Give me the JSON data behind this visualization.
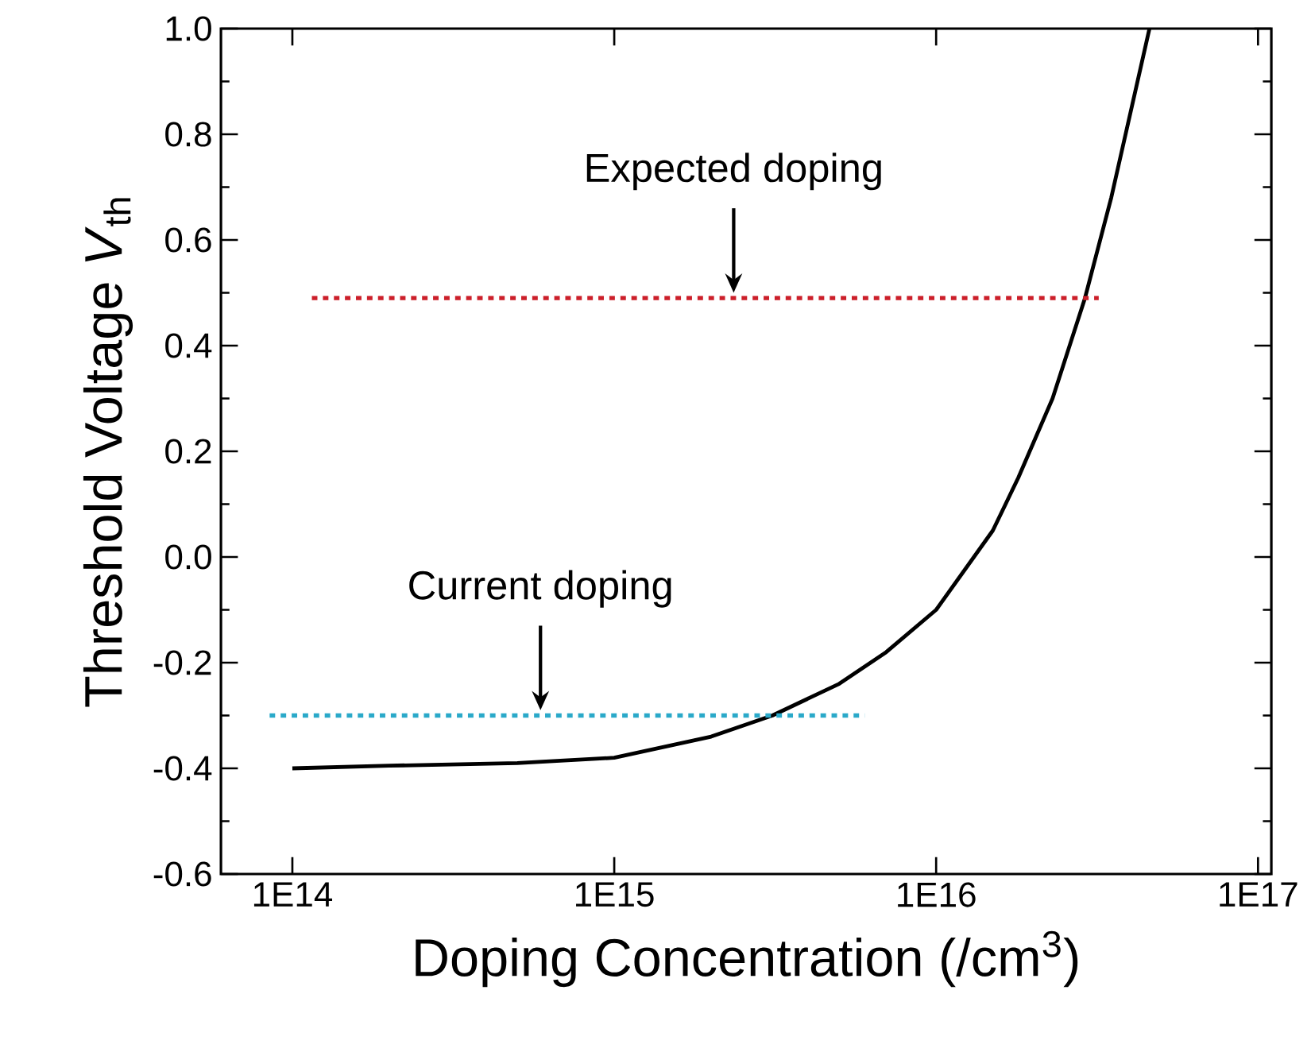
{
  "chart_data": {
    "type": "line",
    "xlabel": "Doping Concentration (/cm$^{3}$)",
    "ylabel": "Threshold Voltage *V*$_{th}$",
    "log": "x",
    "xlim": [
      60000000000000.0,
      1.1e+17
    ],
    "ylim": [
      -0.6,
      1.0
    ],
    "xticks": [
      {
        "value": 100000000000000.0,
        "label": "1E14"
      },
      {
        "value": 1000000000000000.0,
        "label": "1E15"
      },
      {
        "value": 1e+16,
        "label": "1E16"
      },
      {
        "value": 1e+17,
        "label": "1E17"
      }
    ],
    "yticks": [
      {
        "value": -0.6,
        "label": "-0.6"
      },
      {
        "value": -0.4,
        "label": "-0.4"
      },
      {
        "value": -0.2,
        "label": "-0.2"
      },
      {
        "value": 0.0,
        "label": "0.0"
      },
      {
        "value": 0.2,
        "label": "0.2"
      },
      {
        "value": 0.4,
        "label": "0.4"
      },
      {
        "value": 0.6,
        "label": "0.6"
      },
      {
        "value": 0.8,
        "label": "0.8"
      },
      {
        "value": 1.0,
        "label": "1.0"
      }
    ],
    "marker": "none",
    "series": [
      {
        "color": "#000000",
        "line_style": "solid",
        "x": [
          100000000000000.0,
          200000000000000.0,
          500000000000000.0,
          1000000000000000.0,
          2000000000000000.0,
          3100000000000000.0,
          5000000000000000.0,
          7000000000000000.0,
          1e+16,
          1.5e+16,
          1.8e+16,
          2.3e+16,
          2.9e+16,
          3.5e+16,
          4.6e+16
        ],
        "values": [
          -0.4,
          -0.395,
          -0.39,
          -0.38,
          -0.34,
          -0.3,
          -0.24,
          -0.18,
          -0.1,
          0.05,
          0.15,
          0.3,
          0.49,
          0.68,
          1.0
        ]
      },
      {
        "color": "#cc1f2a",
        "line_style": "dotted",
        "x": [
          115000000000000.0,
          3.2e+16
        ],
        "values": [
          0.49,
          0.49
        ]
      },
      {
        "color": "#2aa9c9",
        "line_style": "dotted",
        "x": [
          85000000000000.0,
          6000000000000000.0
        ],
        "values": [
          -0.3,
          -0.3
        ]
      }
    ],
    "annotations": [
      {
        "text": "Expected doping",
        "x": 2350000000000000.0,
        "y": 0.49
      },
      {
        "text": "Current doping",
        "x": 590000000000000.0,
        "y": -0.3
      }
    ]
  }
}
